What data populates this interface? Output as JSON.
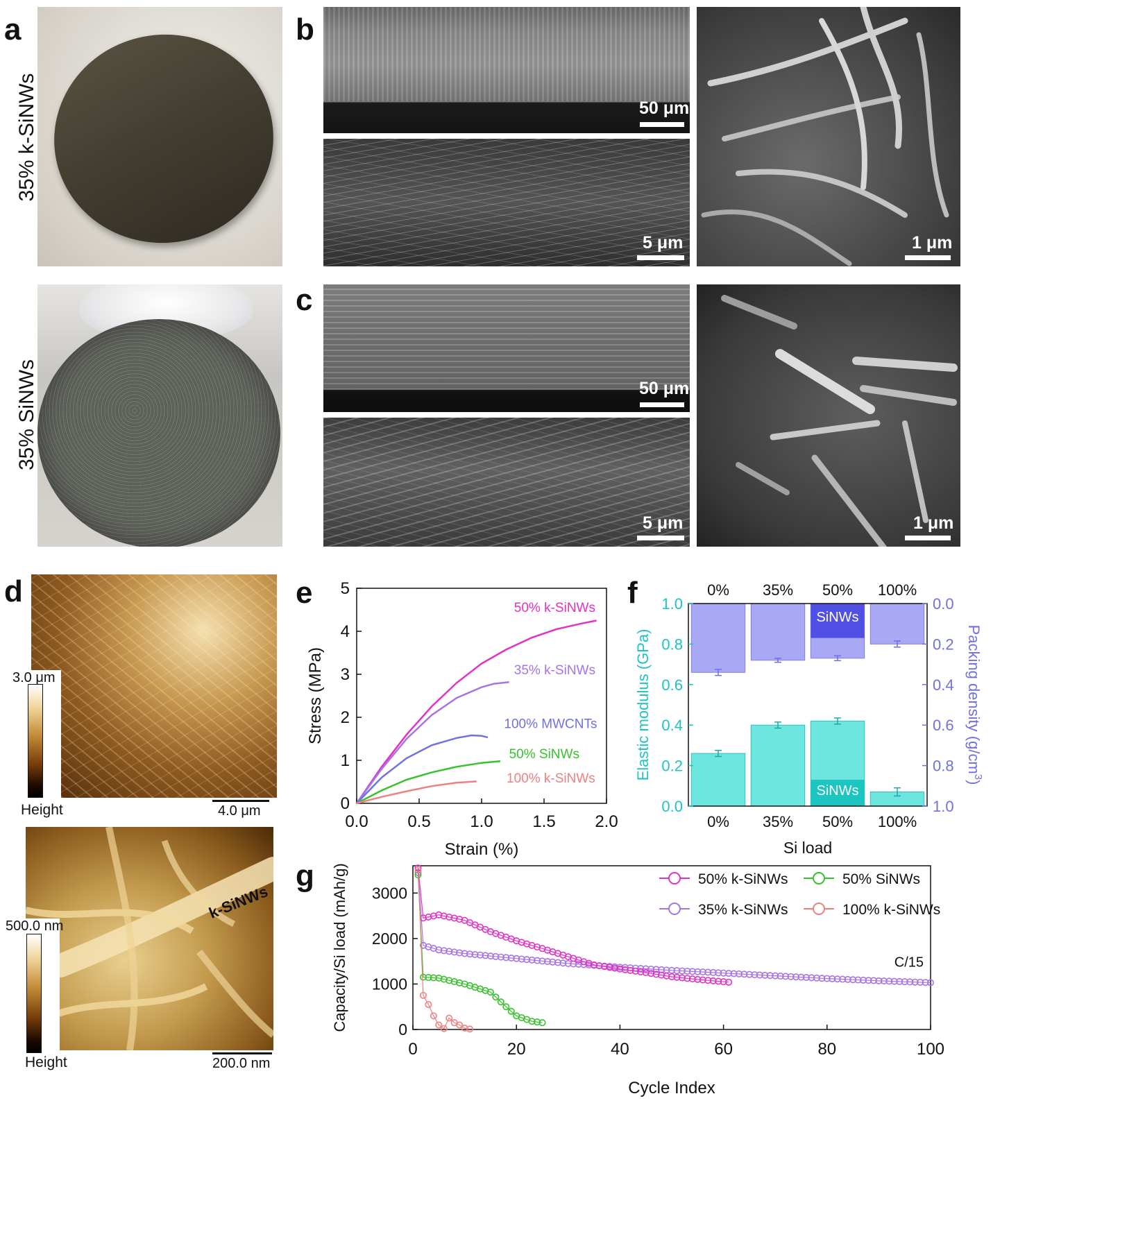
{
  "panels": {
    "a": "a",
    "b": "b",
    "c": "c",
    "d": "d",
    "e": "e",
    "f": "f",
    "g": "g"
  },
  "photo_labels": {
    "top": "35% k-SiNWs",
    "bottom": "35% SiNWs"
  },
  "sem_scalebars": {
    "b_top": "50 μm",
    "b_bottom": "5 μm",
    "b_right": "1 μm",
    "c_top": "50 μm",
    "c_bottom": "5 μm",
    "c_right": "1 μm"
  },
  "afm": {
    "top": {
      "scale_max": "3.0 μm",
      "legend_label": "Height",
      "scalebar": "4.0 μm"
    },
    "bottom": {
      "scale_max": "500.0 nm",
      "legend_label": "Height",
      "scalebar": "200.0 nm",
      "annotation": "k-SiNWs"
    }
  },
  "colors": {
    "pink": "#e331c6",
    "purple": "#a574e8",
    "blue": "#6f6fe6",
    "green": "#36c22a",
    "salmon": "#ef8080",
    "cyan": "#1ec4c4",
    "cyan_fill": "#6ee6e0",
    "lav_fill": "#a8a8f4",
    "dark_blue": "#5050e6"
  },
  "chart_data": [
    {
      "id": "e",
      "type": "line",
      "xlabel": "Strain (%)",
      "ylabel": "Stress (MPa)",
      "xlim": [
        0,
        2.0
      ],
      "ylim": [
        0,
        5
      ],
      "xticks": [
        "0.0",
        "0.5",
        "1.0",
        "1.5",
        "2.0"
      ],
      "yticks": [
        "0",
        "1",
        "2",
        "3",
        "4",
        "5"
      ],
      "series": [
        {
          "name": "50% k-SiNWs",
          "color": "#e331c6",
          "x": [
            0,
            0.2,
            0.4,
            0.6,
            0.8,
            1.0,
            1.2,
            1.4,
            1.6,
            1.8,
            1.92
          ],
          "y": [
            0,
            0.85,
            1.6,
            2.25,
            2.8,
            3.25,
            3.58,
            3.85,
            4.05,
            4.18,
            4.25
          ]
        },
        {
          "name": "35% k-SiNWs",
          "color": "#a574e8",
          "x": [
            0,
            0.2,
            0.4,
            0.6,
            0.8,
            1.0,
            1.1,
            1.22
          ],
          "y": [
            0,
            0.8,
            1.5,
            2.05,
            2.45,
            2.7,
            2.78,
            2.82
          ]
        },
        {
          "name": "100% MWCNTs",
          "color": "#6f6fe6",
          "x": [
            0,
            0.2,
            0.4,
            0.6,
            0.8,
            0.92,
            1.0,
            1.05
          ],
          "y": [
            0,
            0.6,
            1.05,
            1.35,
            1.52,
            1.58,
            1.57,
            1.53
          ]
        },
        {
          "name": "50% SiNWs",
          "color": "#36c22a",
          "x": [
            0,
            0.2,
            0.4,
            0.6,
            0.8,
            1.0,
            1.15
          ],
          "y": [
            0,
            0.3,
            0.55,
            0.72,
            0.85,
            0.94,
            0.98
          ]
        },
        {
          "name": "100% k-SiNWs",
          "color": "#ef8080",
          "x": [
            0,
            0.2,
            0.4,
            0.6,
            0.8,
            0.96
          ],
          "y": [
            0,
            0.15,
            0.28,
            0.4,
            0.48,
            0.51
          ]
        }
      ]
    },
    {
      "id": "f",
      "type": "bar",
      "xlabel": "Si load",
      "ylabel_left": "Elastic modulus (GPa)",
      "ylabel_right": "Packing density (g/cm",
      "ylabel_right_sup": "3",
      "ylabel_right_close": ")",
      "categories": [
        "0%",
        "35%",
        "50%",
        "100%"
      ],
      "ylim_left": [
        0,
        1.0
      ],
      "ylim_right": [
        0,
        1.0
      ],
      "yticks_left": [
        "0.0",
        "0.2",
        "0.4",
        "0.6",
        "0.8",
        "1.0"
      ],
      "yticks_right": [
        "0.0",
        "0.2",
        "0.4",
        "0.6",
        "0.8",
        "1.0"
      ],
      "series": [
        {
          "name": "Elastic modulus",
          "values": [
            0.26,
            0.4,
            0.42,
            0.07
          ],
          "errors": [
            0.015,
            0.015,
            0.015,
            0.02
          ]
        },
        {
          "name": "Packing density",
          "values": [
            0.34,
            0.28,
            0.27,
            0.2
          ],
          "errors": [
            0.015,
            0.01,
            0.012,
            0.015
          ]
        },
        {
          "name": "SiNWs",
          "values": [
            null,
            null,
            0.13,
            null
          ],
          "axis": "left"
        },
        {
          "name": "SiNWs",
          "values": [
            null,
            null,
            0.17,
            null
          ],
          "axis": "right"
        }
      ],
      "annotation": "SiNWs"
    },
    {
      "id": "g",
      "type": "scatter",
      "xlabel": "Cycle Index",
      "ylabel": "Capacity/Si load (mAh/g)",
      "xlim": [
        0,
        100
      ],
      "ylim": [
        0,
        3600
      ],
      "xticks": [
        "0",
        "20",
        "40",
        "60",
        "80",
        "100"
      ],
      "yticks": [
        "0",
        "1000",
        "2000",
        "3000"
      ],
      "annotation": "C/15",
      "series": [
        {
          "name": "50% k-SiNWs",
          "color": "#e331c6",
          "points": [
            [
              1,
              3550
            ],
            [
              2,
              2450
            ],
            [
              5,
              2520
            ],
            [
              10,
              2400
            ],
            [
              15,
              2150
            ],
            [
              20,
              1950
            ],
            [
              25,
              1780
            ],
            [
              30,
              1600
            ],
            [
              35,
              1420
            ],
            [
              40,
              1330
            ],
            [
              45,
              1250
            ],
            [
              50,
              1160
            ],
            [
              55,
              1100
            ],
            [
              60,
              1050
            ],
            [
              61,
              1040
            ]
          ]
        },
        {
          "name": "50% SiNWs",
          "color": "#36c22a",
          "points": [
            [
              1,
              3400
            ],
            [
              2,
              1150
            ],
            [
              5,
              1130
            ],
            [
              10,
              1000
            ],
            [
              15,
              820
            ],
            [
              18,
              500
            ],
            [
              20,
              300
            ],
            [
              23,
              180
            ],
            [
              25,
              150
            ]
          ]
        },
        {
          "name": "35% k-SiNWs",
          "color": "#a574e8",
          "points": [
            [
              1,
              3450
            ],
            [
              2,
              1850
            ],
            [
              5,
              1750
            ],
            [
              10,
              1670
            ],
            [
              20,
              1560
            ],
            [
              30,
              1450
            ],
            [
              40,
              1370
            ],
            [
              50,
              1300
            ],
            [
              60,
              1240
            ],
            [
              70,
              1180
            ],
            [
              80,
              1120
            ],
            [
              90,
              1070
            ],
            [
              100,
              1030
            ]
          ]
        },
        {
          "name": "100% k-SiNWs",
          "color": "#ef8080",
          "points": [
            [
              1,
              3500
            ],
            [
              2,
              750
            ],
            [
              3,
              550
            ],
            [
              4,
              300
            ],
            [
              5,
              100
            ],
            [
              6,
              20
            ],
            [
              7,
              250
            ],
            [
              8,
              150
            ],
            [
              9,
              100
            ],
            [
              10,
              30
            ],
            [
              11,
              10
            ]
          ]
        }
      ]
    }
  ]
}
